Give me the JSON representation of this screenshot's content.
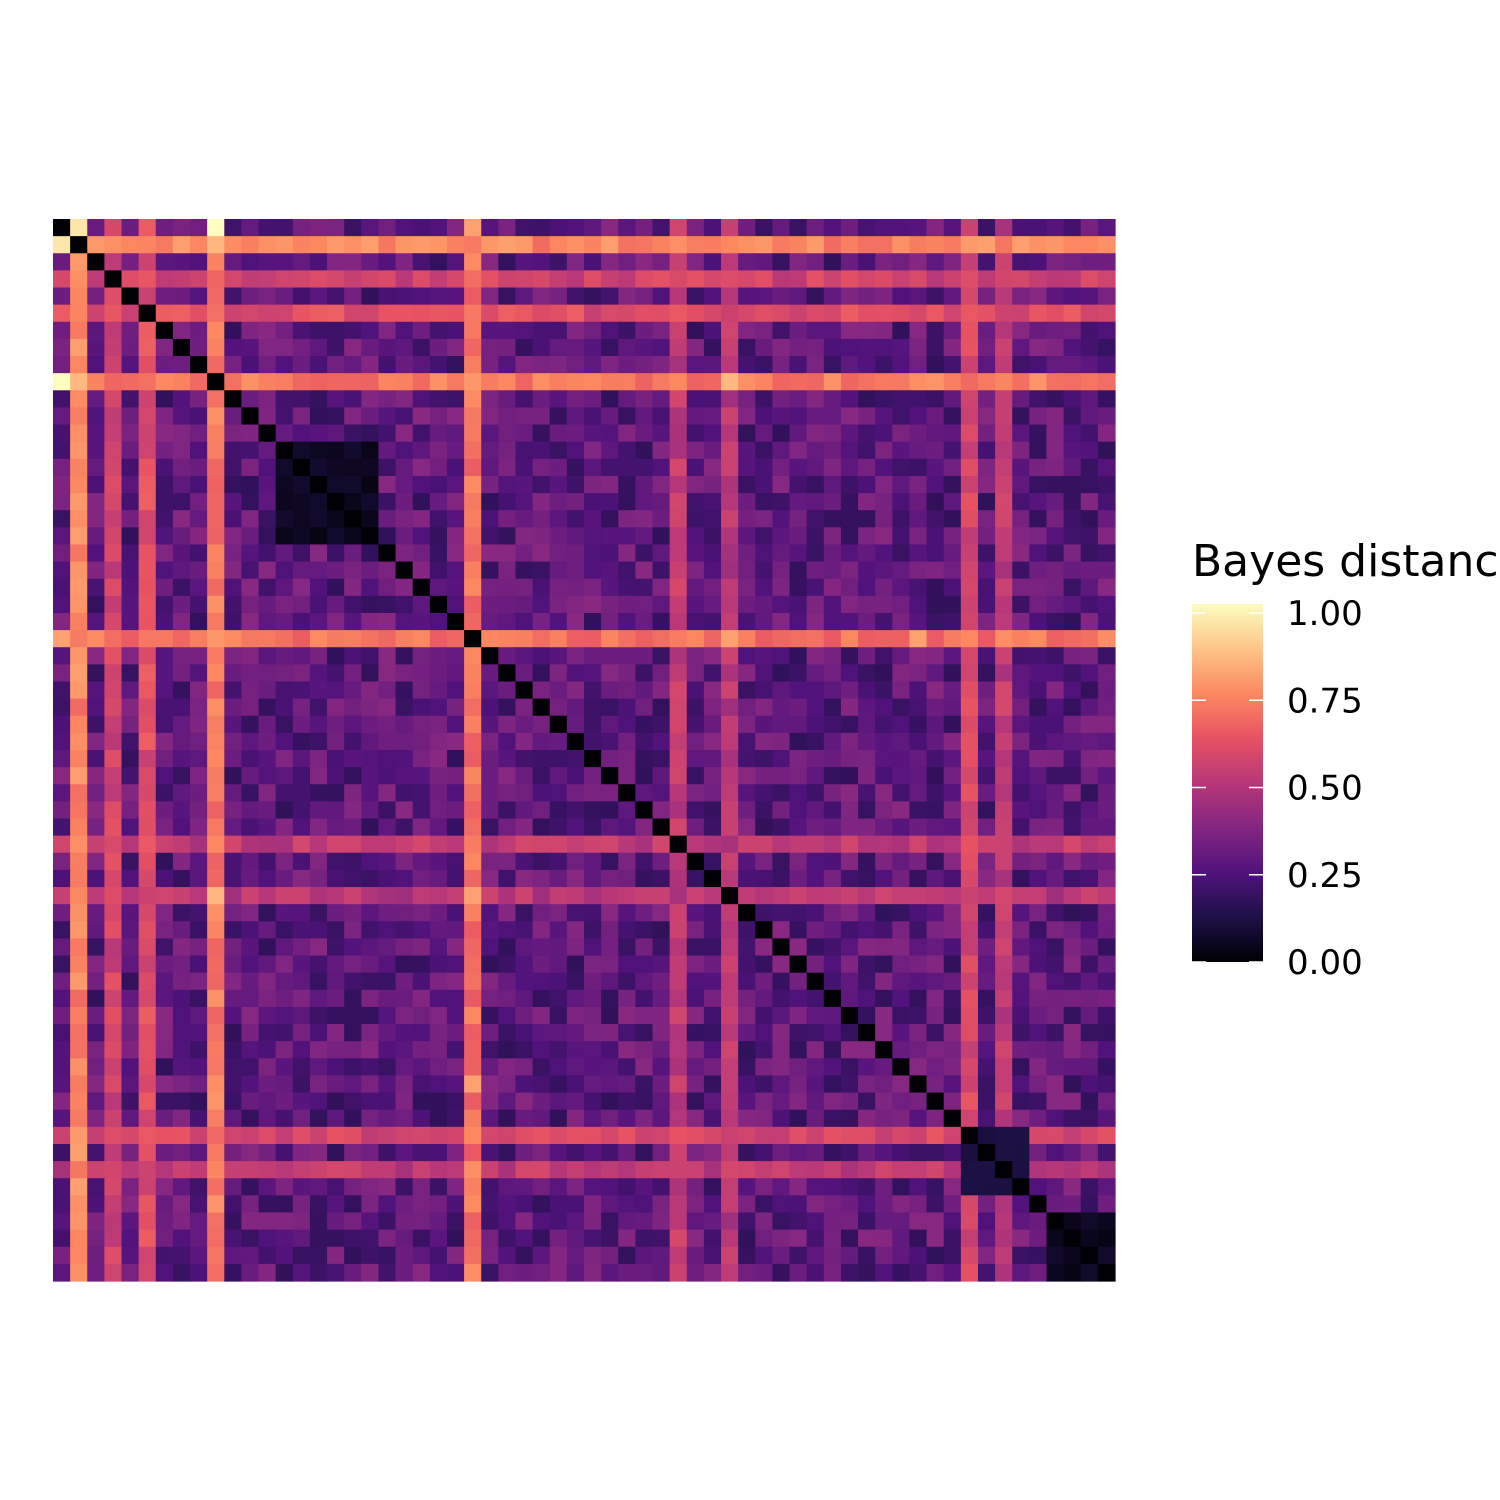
{
  "chart_data": {
    "type": "heatmap",
    "n": 62,
    "symmetric": true,
    "diagonal_value": 0,
    "base_value": 0.28,
    "colorscale": "magma",
    "colorscale_stops": [
      "#000004",
      "#1d1147",
      "#51127c",
      "#832681",
      "#b73779",
      "#e75263",
      "#fc8961",
      "#fec488",
      "#fcfdbf"
    ],
    "value_range": [
      0,
      1
    ],
    "high_rows": [
      {
        "index": 2,
        "value": 0.74
      },
      {
        "index": 4,
        "value": 0.56
      },
      {
        "index": 6,
        "value": 0.6
      },
      {
        "index": 10,
        "value": 0.72
      },
      {
        "index": 25,
        "value": 0.7
      },
      {
        "index": 37,
        "value": 0.52
      },
      {
        "index": 40,
        "value": 0.5
      },
      {
        "index": 54,
        "value": 0.58
      },
      {
        "index": 56,
        "value": 0.52
      }
    ],
    "high_pair_values": [
      {
        "row": 1,
        "col": 2,
        "value": 0.95
      },
      {
        "row": 1,
        "col": 10,
        "value": 1.0
      },
      {
        "row": 1,
        "col": 25,
        "value": 0.8
      },
      {
        "row": 2,
        "col": 10,
        "value": 0.85
      },
      {
        "row": 10,
        "col": 25,
        "value": 0.78
      },
      {
        "row": 10,
        "col": 40,
        "value": 0.85
      },
      {
        "row": 25,
        "col": 40,
        "value": 0.8
      },
      {
        "row": 25,
        "col": 51,
        "value": 0.8
      }
    ],
    "low_blocks": [
      {
        "rows": [
          14,
          19
        ],
        "cols": [
          14,
          19
        ],
        "value": 0.03
      },
      {
        "rows": [
          54,
          57
        ],
        "cols": [
          54,
          57
        ],
        "value": 0.08
      },
      {
        "rows": [
          59,
          62
        ],
        "cols": [
          59,
          62
        ],
        "value": 0.03
      }
    ],
    "legend": {
      "title": "Bayes distance",
      "ticks": [
        {
          "value": 1.0,
          "label": "1.00"
        },
        {
          "value": 0.75,
          "label": "0.75"
        },
        {
          "value": 0.5,
          "label": "0.50"
        },
        {
          "value": 0.25,
          "label": "0.25"
        },
        {
          "value": 0.0,
          "label": "0.00"
        }
      ]
    }
  }
}
